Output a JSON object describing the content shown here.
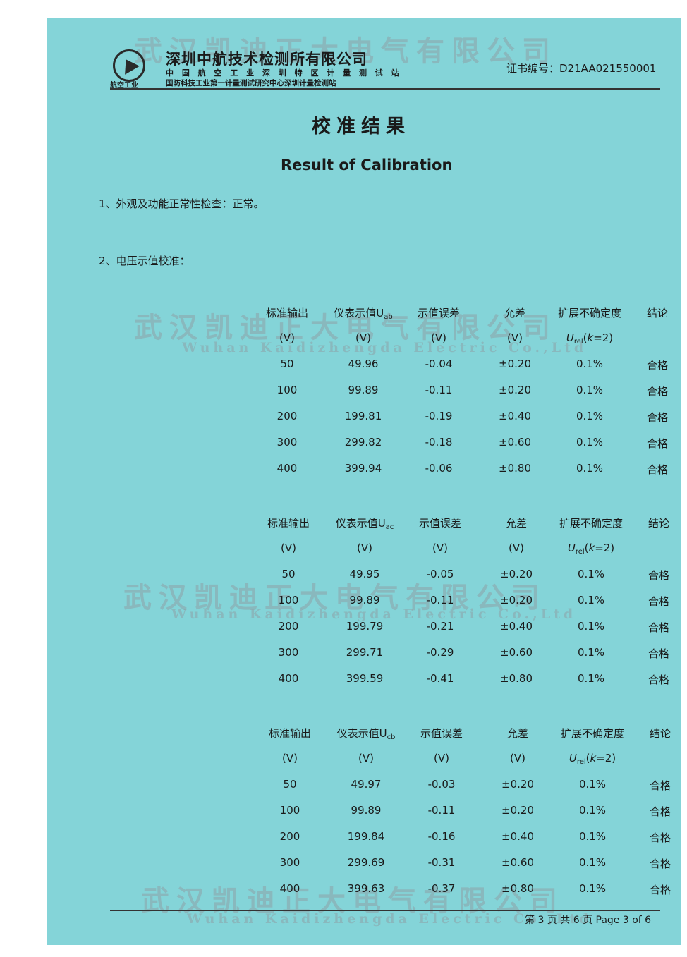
{
  "header": {
    "company": "深圳中航技术检测所有限公司",
    "line2": "中 国 航 空 工 业 深 圳 特 区 计 量 测 试 站",
    "line3": "国防科技工业第一计量测试研究中心深圳计量检测站",
    "logo_caption": "航空工业",
    "cert_label": "证书编号：D21AA021550001"
  },
  "title_cn": "校准结果",
  "title_en": "Result of Calibration",
  "section1": "1、外观及功能正常性检查：正常。",
  "section2": "2、电压示值校准：",
  "columns": [
    "标准输出",
    "仪表示值U",
    "示值误差",
    "允差",
    "扩展不确定度",
    "结论"
  ],
  "units": [
    "(V)",
    "(V)",
    "(V)",
    "(V)",
    "U_rel(k=2)",
    ""
  ],
  "tables": [
    {
      "subscript": "ab",
      "rows": [
        [
          "50",
          "49.96",
          "-0.04",
          "±0.20",
          "0.1%",
          "合格"
        ],
        [
          "100",
          "99.89",
          "-0.11",
          "±0.20",
          "0.1%",
          "合格"
        ],
        [
          "200",
          "199.81",
          "-0.19",
          "±0.40",
          "0.1%",
          "合格"
        ],
        [
          "300",
          "299.82",
          "-0.18",
          "±0.60",
          "0.1%",
          "合格"
        ],
        [
          "400",
          "399.94",
          "-0.06",
          "±0.80",
          "0.1%",
          "合格"
        ]
      ]
    },
    {
      "subscript": "ac",
      "rows": [
        [
          "50",
          "49.95",
          "-0.05",
          "±0.20",
          "0.1%",
          "合格"
        ],
        [
          "100",
          "99.89",
          "-0.11",
          "±0.20",
          "0.1%",
          "合格"
        ],
        [
          "200",
          "199.79",
          "-0.21",
          "±0.40",
          "0.1%",
          "合格"
        ],
        [
          "300",
          "299.71",
          "-0.29",
          "±0.60",
          "0.1%",
          "合格"
        ],
        [
          "400",
          "399.59",
          "-0.41",
          "±0.80",
          "0.1%",
          "合格"
        ]
      ]
    },
    {
      "subscript": "cb",
      "rows": [
        [
          "50",
          "49.97",
          "-0.03",
          "±0.20",
          "0.1%",
          "合格"
        ],
        [
          "100",
          "99.89",
          "-0.11",
          "±0.20",
          "0.1%",
          "合格"
        ],
        [
          "200",
          "199.84",
          "-0.16",
          "±0.40",
          "0.1%",
          "合格"
        ],
        [
          "300",
          "299.69",
          "-0.31",
          "±0.60",
          "0.1%",
          "合格"
        ],
        [
          "400",
          "399.63",
          "-0.37",
          "±0.80",
          "0.1%",
          "合格"
        ]
      ]
    }
  ],
  "footer": {
    "page": "第 3 页  共 6 页   Page 3 of 6"
  },
  "watermarks": {
    "cn": "武汉凯迪正大电气有限公司",
    "en": "Wuhan Kaidizhengda Electric Co.,Ltd"
  },
  "colors": {
    "paper": "#84d4d8",
    "text": "#1a1a1a"
  }
}
